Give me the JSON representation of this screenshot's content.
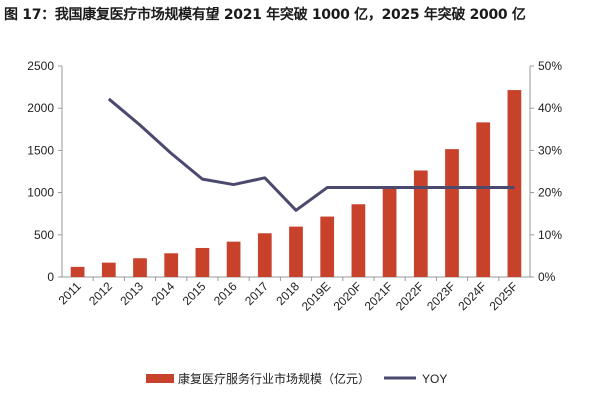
{
  "title": "图 17：我国康复医疗市场规模有望 2021 年突破 1000 亿，2025 年突破 2000 亿",
  "chart_data": {
    "type": "bar+line",
    "categories": [
      "2011",
      "2012",
      "2013",
      "2014",
      "2015",
      "2016",
      "2017",
      "2018",
      "2019E",
      "2020F",
      "2021F",
      "2022F",
      "2023F",
      "2024F",
      "2025F"
    ],
    "series": [
      {
        "name": "康复医疗服务行业市场规模（亿元）",
        "type": "bar",
        "axis": "left",
        "color": "#c8412a",
        "values": [
          120,
          170,
          222,
          281,
          344,
          419,
          518,
          597,
          716,
          862,
          1043,
          1262,
          1515,
          1832,
          2215
        ]
      },
      {
        "name": "YOY",
        "type": "line",
        "axis": "right",
        "color": "#4b4a6e",
        "values": [
          null,
          42.2,
          36.0,
          29.3,
          23.2,
          21.9,
          23.5,
          15.8,
          21.2,
          21.2,
          21.2,
          21.2,
          21.2,
          21.2,
          21.2
        ]
      }
    ],
    "y_left": {
      "range": [
        0,
        2500
      ],
      "ticks": [
        "0",
        "500",
        "1000",
        "1500",
        "2000",
        "2500"
      ]
    },
    "y_right": {
      "range": [
        0,
        50
      ],
      "ticks": [
        "0%",
        "10%",
        "20%",
        "30%",
        "40%",
        "50%"
      ]
    },
    "grid": false,
    "legend_placement": "bottom"
  }
}
